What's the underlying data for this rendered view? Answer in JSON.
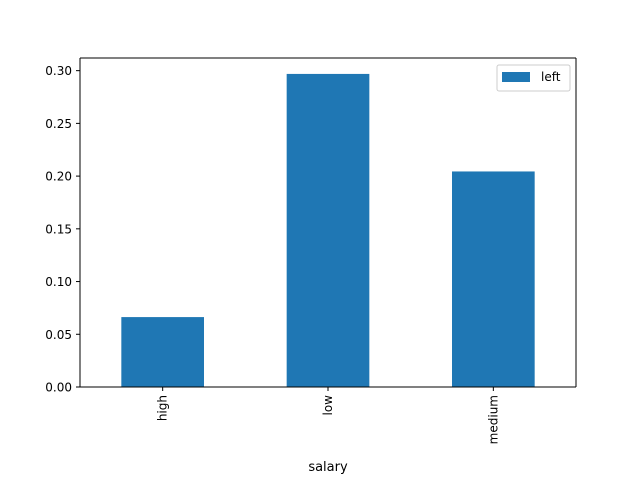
{
  "chart_data": {
    "type": "bar",
    "title": "",
    "xlabel": "salary",
    "ylabel": "",
    "categories": [
      "high",
      "low",
      "medium"
    ],
    "series": [
      {
        "name": "left",
        "values": [
          0.0663,
          0.2969,
          0.2044
        ],
        "color": "#1f77b4"
      }
    ],
    "ylim": [
      0,
      0.312
    ],
    "yticks": [
      "0.00",
      "0.05",
      "0.10",
      "0.15",
      "0.20",
      "0.25",
      "0.30"
    ],
    "ytick_values": [
      0,
      0.05,
      0.1,
      0.15,
      0.2,
      0.25,
      0.3
    ],
    "grid": false,
    "legend_position": "top-right",
    "xtick_rotation": "vertical"
  }
}
